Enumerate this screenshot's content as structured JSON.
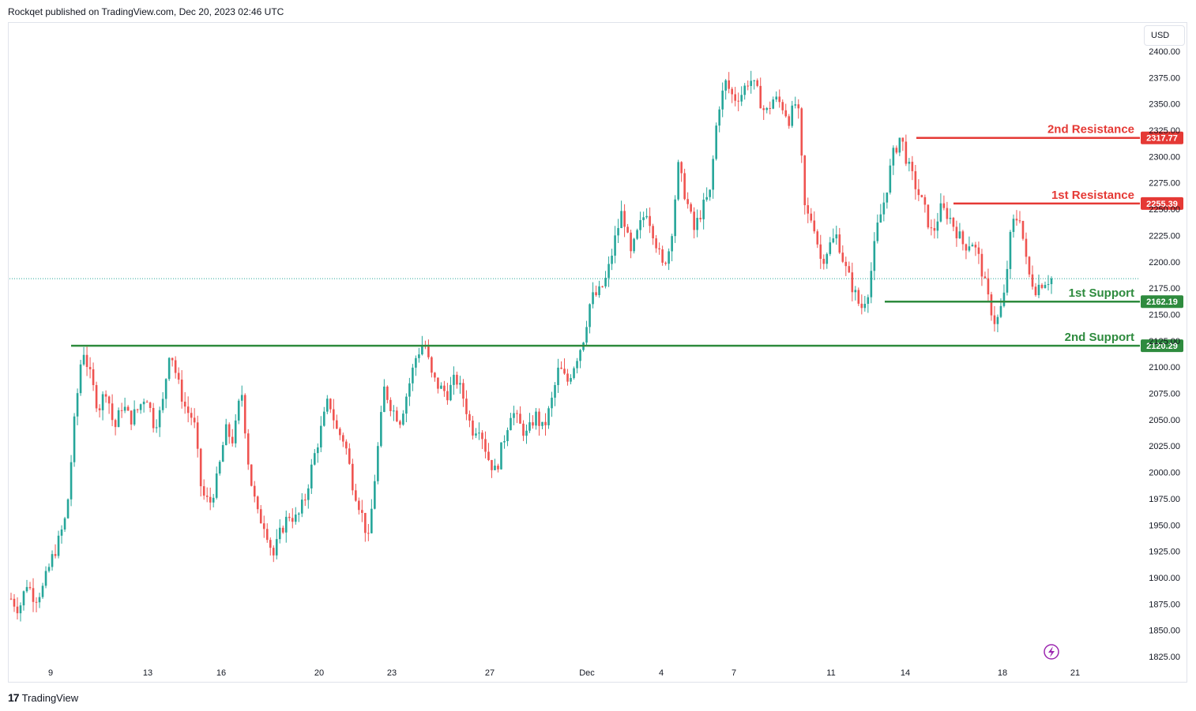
{
  "header": {
    "publisher": "Rockqet published on TradingView.com, Dec 20, 2023 02:46 UTC"
  },
  "currency": "USD",
  "footer": {
    "brand": "TradingView"
  },
  "icons": {
    "lightning": "lightning-icon"
  },
  "colors": {
    "up": "#26a69a",
    "down": "#ef5350",
    "support": "#2e8b3e",
    "resistance": "#e53935"
  },
  "chart_data": {
    "type": "candlestick",
    "title": "",
    "xlabel": "",
    "ylabel": "",
    "ylim": [
      1815,
      2418
    ],
    "y_ticks": [
      "2400.00",
      "2375.00",
      "2350.00",
      "2325.00",
      "2300.00",
      "2275.00",
      "2250.00",
      "2225.00",
      "2200.00",
      "2175.00",
      "2150.00",
      "2125.00",
      "2100.00",
      "2075.00",
      "2050.00",
      "2025.00",
      "2000.00",
      "1975.00",
      "1950.00",
      "1925.00",
      "1900.00",
      "1875.00",
      "1850.00",
      "1825.00"
    ],
    "x_ticks": [
      "9",
      "13",
      "16",
      "20",
      "23",
      "27",
      "Dec",
      "4",
      "7",
      "11",
      "14",
      "18",
      "21"
    ],
    "last_price": 2184,
    "levels": [
      {
        "name": "2nd Resistance",
        "value": 2317.77,
        "label": "2317.77",
        "kind": "resistance"
      },
      {
        "name": "1st Resistance",
        "value": 2255.39,
        "label": "2255.39",
        "kind": "resistance"
      },
      {
        "name": "1st Support",
        "value": 2162.19,
        "label": "2162.19",
        "kind": "support"
      },
      {
        "name": "2nd Support",
        "value": 2120.29,
        "label": "2120.29",
        "kind": "support"
      }
    ],
    "close_path": [
      1880,
      1870,
      1895,
      1880,
      1890,
      1915,
      1935,
      1960,
      2050,
      2120,
      2090,
      2060,
      2080,
      2040,
      2065,
      2050,
      2060,
      2075,
      2045,
      2060,
      2120,
      2085,
      2060,
      2050,
      1980,
      1970,
      1995,
      2040,
      2030,
      2080,
      2000,
      1960,
      1950,
      1920,
      1945,
      1960,
      1955,
      1975,
      2010,
      2040,
      2070,
      2040,
      2030,
      1990,
      1965,
      1935,
      2010,
      2080,
      2060,
      2050,
      2080,
      2110,
      2125,
      2090,
      2080,
      2075,
      2090,
      2070,
      2040,
      2045,
      2015,
      2000,
      2030,
      2060,
      2045,
      2035,
      2055,
      2040,
      2065,
      2100,
      2085,
      2105,
      2125,
      2165,
      2170,
      2185,
      2220,
      2250,
      2205,
      2230,
      2250,
      2225,
      2195,
      2215,
      2290,
      2260,
      2230,
      2250,
      2265,
      2345,
      2370,
      2355,
      2360,
      2375,
      2360,
      2340,
      2355,
      2350,
      2335,
      2355,
      2245,
      2240,
      2200,
      2215,
      2225,
      2195,
      2175,
      2155,
      2175,
      2230,
      2260,
      2300,
      2320,
      2290,
      2270,
      2250,
      2225,
      2250,
      2245,
      2230,
      2215,
      2220,
      2200,
      2165,
      2140,
      2165,
      2235,
      2245,
      2190,
      2175,
      2182,
      2184
    ]
  }
}
